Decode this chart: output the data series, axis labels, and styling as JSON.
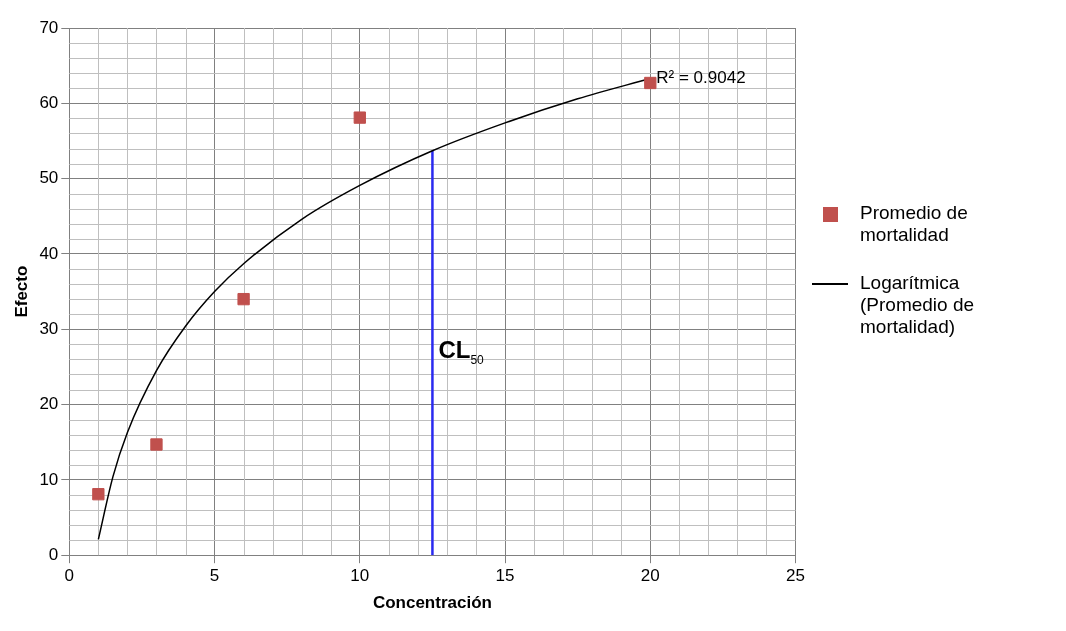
{
  "chart_data": {
    "type": "scatter",
    "xlabel": "Concentración",
    "ylabel": "Efecto",
    "xlim": [
      0,
      25
    ],
    "xticks": [
      0,
      5,
      10,
      15,
      20,
      25
    ],
    "ylim": [
      0,
      70
    ],
    "yticks": [
      0,
      10,
      20,
      30,
      40,
      50,
      60,
      70
    ],
    "grid": true,
    "legend": "right",
    "annotations": [
      {
        "text": "R² = 0.9042",
        "x": 20,
        "y": 63.3
      },
      {
        "text": "CL$_{50}$",
        "x": 12.5,
        "y": 27
      }
    ],
    "series": [
      {
        "name": "Promedio de mortalidad",
        "marker": "square",
        "color": "#c0504d",
        "x": [
          1,
          3,
          6,
          10,
          20
        ],
        "values": [
          8.1,
          14.7,
          34,
          58.1,
          62.7
        ]
      },
      {
        "name": "Logarítmica (Promedio de mortalidad)",
        "type": "line",
        "marker": "none",
        "color": "#000000",
        "x": [
          1,
          1.5,
          2,
          3,
          4,
          5,
          6,
          8,
          10,
          12.5,
          15,
          17.5,
          20
        ],
        "values": [
          2.1,
          10.4,
          16.3,
          24.5,
          30.4,
          35.0,
          38.7,
          44.6,
          49.1,
          53.7,
          57.4,
          60.6,
          63.3
        ]
      },
      {
        "type": "line",
        "marker": "none",
        "color": "#2a2af0",
        "x": [
          12.5,
          12.5
        ],
        "values": [
          0,
          53.7
        ]
      }
    ]
  }
}
